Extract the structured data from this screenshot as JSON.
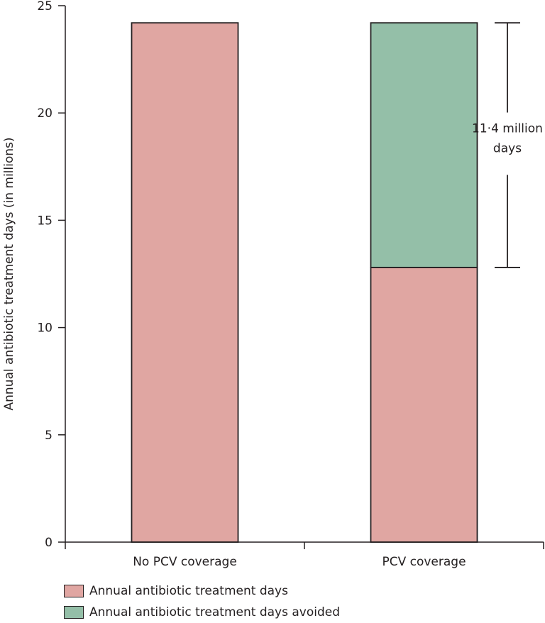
{
  "chart_data": {
    "type": "bar",
    "stacked": true,
    "ylabel": "Annual antibiotic treatment days (in millions)",
    "xlabel": "",
    "ylim": [
      0,
      25
    ],
    "yticks": [
      0,
      5,
      10,
      15,
      20,
      25
    ],
    "categories": [
      "No PCV coverage",
      "PCV coverage"
    ],
    "series": [
      {
        "name": "Annual antibiotic treatment days",
        "color": "#e0a6a2",
        "values": [
          24.2,
          12.8
        ]
      },
      {
        "name": "Annual antibiotic treatment days avoided",
        "color": "#94bfa8",
        "values": [
          0,
          11.4
        ]
      }
    ],
    "annotation": {
      "line1": "11·4 million",
      "line2": "days",
      "from": 12.8,
      "to": 24.2
    },
    "legend_position": "bottom-left",
    "grid": false
  }
}
